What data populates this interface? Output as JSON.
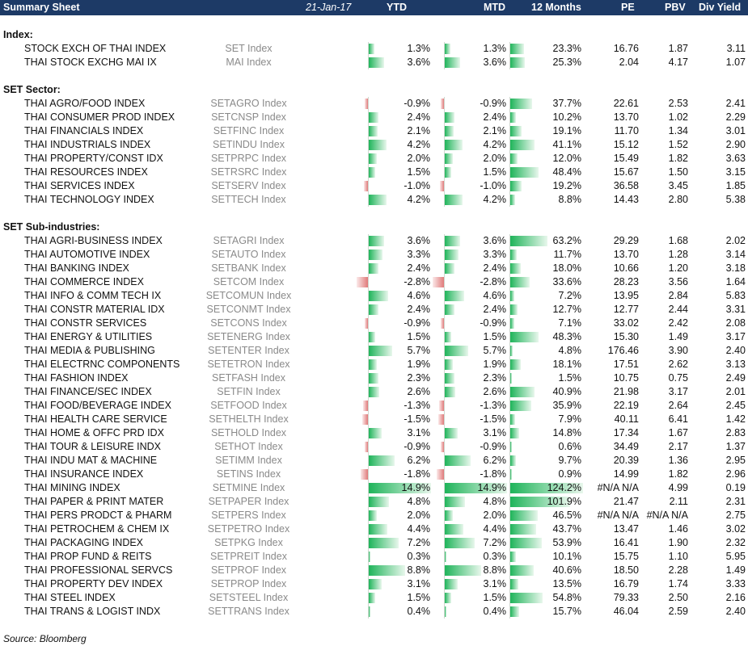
{
  "header": {
    "title": "Summary Sheet",
    "date": "21-Jan-17",
    "col_ytd": "YTD",
    "col_mtd": "MTD",
    "col_12m": "12 Months",
    "col_pe": "PE",
    "col_pbv": "PBV",
    "col_div": "Div Yield"
  },
  "colors": {
    "header_bg": "#1d3a66",
    "bar_positive": "#1fb45a",
    "bar_negative": "#e07a7a"
  },
  "sections": [
    {
      "title": "Index:",
      "rows": [
        {
          "name": "STOCK EXCH OF THAI INDEX",
          "ticker": "SET Index",
          "ytd": "1.3%",
          "mtd": "1.3%",
          "m12": "23.3%",
          "pe": "16.76",
          "pbv": "1.87",
          "div": "3.11"
        },
        {
          "name": "THAI STOCK EXCHG MAI IX",
          "ticker": "MAI Index",
          "ytd": "3.6%",
          "mtd": "3.6%",
          "m12": "25.3%",
          "pe": "2.04",
          "pbv": "4.17",
          "div": "1.07"
        }
      ]
    },
    {
      "title": "SET Sector:",
      "rows": [
        {
          "name": "THAI AGRO/FOOD INDEX",
          "ticker": "SETAGRO Index",
          "ytd": "-0.9%",
          "mtd": "-0.9%",
          "m12": "37.7%",
          "pe": "22.61",
          "pbv": "2.53",
          "div": "2.41"
        },
        {
          "name": "THAI CONSUMER PROD INDEX",
          "ticker": "SETCNSP Index",
          "ytd": "2.4%",
          "mtd": "2.4%",
          "m12": "10.2%",
          "pe": "13.70",
          "pbv": "1.02",
          "div": "2.29"
        },
        {
          "name": "THAI FINANCIALS INDEX",
          "ticker": "SETFINC Index",
          "ytd": "2.1%",
          "mtd": "2.1%",
          "m12": "19.1%",
          "pe": "11.70",
          "pbv": "1.34",
          "div": "3.01"
        },
        {
          "name": "THAI INDUSTRIALS INDEX",
          "ticker": "SETINDU Index",
          "ytd": "4.2%",
          "mtd": "4.2%",
          "m12": "41.1%",
          "pe": "15.12",
          "pbv": "1.52",
          "div": "2.90"
        },
        {
          "name": "THAI PROPERTY/CONST IDX",
          "ticker": "SETPRPC Index",
          "ytd": "2.0%",
          "mtd": "2.0%",
          "m12": "12.0%",
          "pe": "15.49",
          "pbv": "1.82",
          "div": "3.63"
        },
        {
          "name": "THAI RESOURCES INDEX",
          "ticker": "SETRSRC Index",
          "ytd": "1.5%",
          "mtd": "1.5%",
          "m12": "48.4%",
          "pe": "15.67",
          "pbv": "1.50",
          "div": "3.15"
        },
        {
          "name": "THAI SERVICES INDEX",
          "ticker": "SETSERV Index",
          "ytd": "-1.0%",
          "mtd": "-1.0%",
          "m12": "19.2%",
          "pe": "36.58",
          "pbv": "3.45",
          "div": "1.85"
        },
        {
          "name": "THAI TECHNOLOGY INDEX",
          "ticker": "SETTECH Index",
          "ytd": "4.2%",
          "mtd": "4.2%",
          "m12": "8.8%",
          "pe": "14.43",
          "pbv": "2.80",
          "div": "5.38"
        }
      ]
    },
    {
      "title": "SET Sub-industries:",
      "rows": [
        {
          "name": "THAI AGRI-BUSINESS INDEX",
          "ticker": "SETAGRI Index",
          "ytd": "3.6%",
          "mtd": "3.6%",
          "m12": "63.2%",
          "pe": "29.29",
          "pbv": "1.68",
          "div": "2.02"
        },
        {
          "name": "THAI AUTOMOTIVE INDEX",
          "ticker": "SETAUTO Index",
          "ytd": "3.3%",
          "mtd": "3.3%",
          "m12": "11.7%",
          "pe": "13.70",
          "pbv": "1.28",
          "div": "3.14"
        },
        {
          "name": "THAI BANKING INDEX",
          "ticker": "SETBANK Index",
          "ytd": "2.4%",
          "mtd": "2.4%",
          "m12": "18.0%",
          "pe": "10.66",
          "pbv": "1.20",
          "div": "3.18"
        },
        {
          "name": "THAI COMMERCE INDEX",
          "ticker": "SETCOM Index",
          "ytd": "-2.8%",
          "mtd": "-2.8%",
          "m12": "33.6%",
          "pe": "28.23",
          "pbv": "3.56",
          "div": "1.64"
        },
        {
          "name": "THAI INFO & COMM TECH IX",
          "ticker": "SETCOMUN Index",
          "ytd": "4.6%",
          "mtd": "4.6%",
          "m12": "7.2%",
          "pe": "13.95",
          "pbv": "2.84",
          "div": "5.83"
        },
        {
          "name": "THAI CONSTR MATERIAL IDX",
          "ticker": "SETCONMT Index",
          "ytd": "2.4%",
          "mtd": "2.4%",
          "m12": "12.7%",
          "pe": "12.77",
          "pbv": "2.44",
          "div": "3.31"
        },
        {
          "name": "THAI CONSTR SERVICES",
          "ticker": "SETCONS Index",
          "ytd": "-0.9%",
          "mtd": "-0.9%",
          "m12": "7.1%",
          "pe": "33.02",
          "pbv": "2.42",
          "div": "2.08"
        },
        {
          "name": "THAI ENERGY & UTILITIES",
          "ticker": "SETENERG Index",
          "ytd": "1.5%",
          "mtd": "1.5%",
          "m12": "48.3%",
          "pe": "15.30",
          "pbv": "1.49",
          "div": "3.17"
        },
        {
          "name": "THAI MEDIA & PUBLISHING",
          "ticker": "SETENTER Index",
          "ytd": "5.7%",
          "mtd": "5.7%",
          "m12": "4.8%",
          "pe": "176.46",
          "pbv": "3.90",
          "div": "2.40"
        },
        {
          "name": "THAI ELECTRNC COMPONENTS",
          "ticker": "SETETRON Index",
          "ytd": "1.9%",
          "mtd": "1.9%",
          "m12": "18.1%",
          "pe": "17.51",
          "pbv": "2.62",
          "div": "3.13"
        },
        {
          "name": "THAI FASHION INDEX",
          "ticker": "SETFASH Index",
          "ytd": "2.3%",
          "mtd": "2.3%",
          "m12": "1.5%",
          "pe": "10.75",
          "pbv": "0.75",
          "div": "2.49"
        },
        {
          "name": "THAI FINANCE/SEC INDEX",
          "ticker": "SETFIN Index",
          "ytd": "2.6%",
          "mtd": "2.6%",
          "m12": "40.9%",
          "pe": "21.98",
          "pbv": "3.17",
          "div": "2.01"
        },
        {
          "name": "THAI FOOD/BEVERAGE INDEX",
          "ticker": "SETFOOD Index",
          "ytd": "-1.3%",
          "mtd": "-1.3%",
          "m12": "35.9%",
          "pe": "22.19",
          "pbv": "2.64",
          "div": "2.45"
        },
        {
          "name": "THAI HEALTH CARE SERVICE",
          "ticker": "SETHELTH Index",
          "ytd": "-1.5%",
          "mtd": "-1.5%",
          "m12": "7.9%",
          "pe": "40.11",
          "pbv": "6.41",
          "div": "1.42"
        },
        {
          "name": "THAI HOME & OFFC PRD IDX",
          "ticker": "SETHOLD Index",
          "ytd": "3.1%",
          "mtd": "3.1%",
          "m12": "14.8%",
          "pe": "17.34",
          "pbv": "1.67",
          "div": "2.83"
        },
        {
          "name": "THAI TOUR & LEISURE INDX",
          "ticker": "SETHOT Index",
          "ytd": "-0.9%",
          "mtd": "-0.9%",
          "m12": "0.6%",
          "pe": "34.49",
          "pbv": "2.17",
          "div": "1.37"
        },
        {
          "name": "THAI INDU MAT & MACHINE",
          "ticker": "SETIMM Index",
          "ytd": "6.2%",
          "mtd": "6.2%",
          "m12": "9.7%",
          "pe": "20.39",
          "pbv": "1.36",
          "div": "2.95"
        },
        {
          "name": "THAI INSURANCE INDEX",
          "ticker": "SETINS Index",
          "ytd": "-1.8%",
          "mtd": "-1.8%",
          "m12": "0.9%",
          "pe": "14.99",
          "pbv": "1.82",
          "div": "2.96"
        },
        {
          "name": "THAI MINING INDEX",
          "ticker": "SETMINE Index",
          "ytd": "14.9%",
          "mtd": "14.9%",
          "m12": "124.2%",
          "pe": "#N/A N/A",
          "pbv": "4.99",
          "div": "0.19"
        },
        {
          "name": "THAI PAPER & PRINT MATER",
          "ticker": "SETPAPER Index",
          "ytd": "4.8%",
          "mtd": "4.8%",
          "m12": "101.9%",
          "pe": "21.47",
          "pbv": "2.11",
          "div": "2.31"
        },
        {
          "name": "THAI PERS PRODCT & PHARM",
          "ticker": "SETPERS Index",
          "ytd": "2.0%",
          "mtd": "2.0%",
          "m12": "46.5%",
          "pe": "#N/A N/A",
          "pbv": "#N/A N/A",
          "div": "2.75"
        },
        {
          "name": "THAI PETROCHEM & CHEM IX",
          "ticker": "SETPETRO Index",
          "ytd": "4.4%",
          "mtd": "4.4%",
          "m12": "43.7%",
          "pe": "13.47",
          "pbv": "1.46",
          "div": "3.02"
        },
        {
          "name": "THAI PACKAGING INDEX",
          "ticker": "SETPKG Index",
          "ytd": "7.2%",
          "mtd": "7.2%",
          "m12": "53.9%",
          "pe": "16.41",
          "pbv": "1.90",
          "div": "2.32"
        },
        {
          "name": "THAI PROP FUND & REITS",
          "ticker": "SETPREIT Index",
          "ytd": "0.3%",
          "mtd": "0.3%",
          "m12": "10.1%",
          "pe": "15.75",
          "pbv": "1.10",
          "div": "5.95"
        },
        {
          "name": "THAI PROFESSIONAL SERVCS",
          "ticker": "SETPROF Index",
          "ytd": "8.8%",
          "mtd": "8.8%",
          "m12": "40.6%",
          "pe": "18.50",
          "pbv": "2.28",
          "div": "1.49"
        },
        {
          "name": "THAI PROPERTY DEV INDEX",
          "ticker": "SETPROP Index",
          "ytd": "3.1%",
          "mtd": "3.1%",
          "m12": "13.5%",
          "pe": "16.79",
          "pbv": "1.74",
          "div": "3.33"
        },
        {
          "name": "THAI STEEL INDEX",
          "ticker": "SETSTEEL Index",
          "ytd": "1.5%",
          "mtd": "1.5%",
          "m12": "54.8%",
          "pe": "79.33",
          "pbv": "2.50",
          "div": "2.16"
        },
        {
          "name": "THAI TRANS & LOGIST INDX",
          "ticker": "SETTRANS Index",
          "ytd": "0.4%",
          "mtd": "0.4%",
          "m12": "15.7%",
          "pe": "46.04",
          "pbv": "2.59",
          "div": "2.40"
        }
      ]
    }
  ],
  "source": "Source: Bloomberg"
}
